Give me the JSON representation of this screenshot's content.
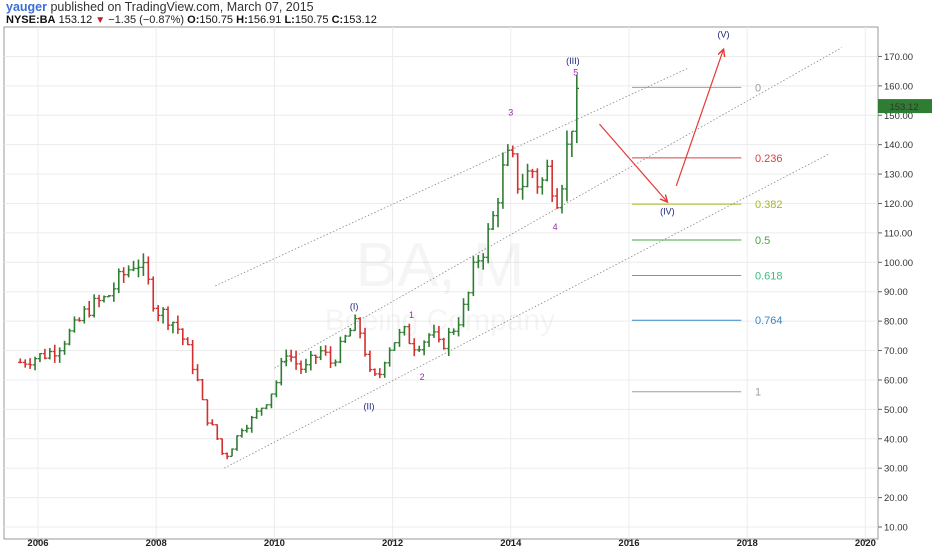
{
  "header": {
    "user": "yauger",
    "published_text": " published on TradingView.com, March 07, 2015",
    "symbol": "NYSE:BA",
    "last": "153.12",
    "change": "−1.35 (−0.87%)",
    "open_label": "O:",
    "open": "150.75",
    "high_label": "H:",
    "high": "156.91",
    "low_label": "L:",
    "low": "150.75",
    "close_label": "C:",
    "close": "153.12"
  },
  "watermark": {
    "ticker": "BA, M",
    "company": "Boeing Company"
  },
  "chart_data": {
    "type": "ohlc",
    "interval": "monthly",
    "ylim": [
      5,
      183
    ],
    "xlim": [
      2005.6,
      2020.25
    ],
    "y_ticks": [
      10,
      20,
      30,
      40,
      50,
      60,
      70,
      80,
      90,
      100,
      110,
      120,
      130,
      140,
      150,
      160,
      170
    ],
    "y_tick_labels": [
      "10.00",
      "20.00",
      "30.00",
      "40.00",
      "50.00",
      "60.00",
      "70.00",
      "80.00",
      "90.00",
      "100.00",
      "110.00",
      "120.00",
      "130.00",
      "140.00",
      "150.00",
      "160.00",
      "170.00"
    ],
    "x_ticks": [
      2006,
      2008,
      2010,
      2012,
      2014,
      2016,
      2018,
      2020
    ],
    "x_tick_labels": [
      "2006",
      "2008",
      "2010",
      "2012",
      "2014",
      "2016",
      "2018",
      "2020"
    ],
    "current_price": 153.12,
    "current_price_label": "153.12",
    "up_color": "#2e7d32",
    "down_color": "#d32f2f",
    "closes": [
      [
        2005.7,
        66
      ],
      [
        2005.85,
        67
      ],
      [
        2006.0,
        68
      ],
      [
        2006.17,
        69
      ],
      [
        2006.33,
        71
      ],
      [
        2006.5,
        75
      ],
      [
        2006.67,
        79
      ],
      [
        2006.83,
        84
      ],
      [
        2007.0,
        86
      ],
      [
        2007.17,
        88
      ],
      [
        2007.33,
        93
      ],
      [
        2007.5,
        97
      ],
      [
        2007.67,
        101
      ],
      [
        2007.83,
        95
      ],
      [
        2008.0,
        84
      ],
      [
        2008.17,
        82
      ],
      [
        2008.33,
        79
      ],
      [
        2008.5,
        72
      ],
      [
        2008.67,
        62
      ],
      [
        2008.83,
        48
      ],
      [
        2009.0,
        42
      ],
      [
        2009.15,
        33
      ],
      [
        2009.3,
        38
      ],
      [
        2009.45,
        44
      ],
      [
        2009.6,
        46
      ],
      [
        2009.75,
        50
      ],
      [
        2009.9,
        54
      ],
      [
        2010.05,
        60
      ],
      [
        2010.2,
        70
      ],
      [
        2010.35,
        66
      ],
      [
        2010.5,
        63
      ],
      [
        2010.65,
        67
      ],
      [
        2010.8,
        70
      ],
      [
        2010.95,
        66
      ],
      [
        2011.1,
        70
      ],
      [
        2011.25,
        76
      ],
      [
        2011.4,
        79
      ],
      [
        2011.5,
        74
      ],
      [
        2011.6,
        62
      ],
      [
        2011.75,
        60
      ],
      [
        2011.9,
        70
      ],
      [
        2012.05,
        74
      ],
      [
        2012.2,
        76
      ],
      [
        2012.35,
        72
      ],
      [
        2012.5,
        73
      ],
      [
        2012.65,
        76
      ],
      [
        2012.8,
        71
      ],
      [
        2012.95,
        75
      ],
      [
        2013.1,
        80
      ],
      [
        2013.25,
        86
      ],
      [
        2013.4,
        100
      ],
      [
        2013.55,
        105
      ],
      [
        2013.7,
        115
      ],
      [
        2013.85,
        130
      ],
      [
        2014.0,
        137
      ],
      [
        2014.08,
        128
      ],
      [
        2014.17,
        126
      ],
      [
        2014.25,
        129
      ],
      [
        2014.35,
        132
      ],
      [
        2014.5,
        125
      ],
      [
        2014.6,
        132
      ],
      [
        2014.7,
        127
      ],
      [
        2014.8,
        122
      ],
      [
        2014.9,
        132
      ],
      [
        2015.0,
        145
      ],
      [
        2015.1,
        154
      ],
      [
        2015.18,
        153.12
      ]
    ],
    "channel": {
      "lower": [
        [
          2009.15,
          30
        ],
        [
          2019.4,
          137
        ]
      ],
      "middle": [
        [
          2010.0,
          64
        ],
        [
          2019.6,
          173
        ]
      ],
      "upper": [
        [
          2009.0,
          92
        ],
        [
          2017.0,
          166
        ]
      ]
    },
    "fibonacci": [
      {
        "level": "0",
        "price": 159.5,
        "color": "#9e9e9e"
      },
      {
        "level": "0.236",
        "price": 135.5,
        "color": "#d84343"
      },
      {
        "level": "0.382",
        "price": 119.8,
        "color": "#a8b820"
      },
      {
        "level": "0.5",
        "price": 107.6,
        "color": "#45a845"
      },
      {
        "level": "0.618",
        "price": 95.5,
        "color": "#3dbb85"
      },
      {
        "level": "0.764",
        "price": 80.3,
        "color": "#3a88c8"
      },
      {
        "level": "1",
        "price": 56.0,
        "color": "#9e9e9e"
      }
    ],
    "fib_x_range": [
      2016.05,
      2017.9
    ],
    "wave_labels": [
      {
        "text": "(I)",
        "x": 2011.35,
        "y": 84,
        "color": "#1a237e"
      },
      {
        "text": "(II)",
        "x": 2011.6,
        "y": 50,
        "color": "#1a237e"
      },
      {
        "text": "1",
        "x": 2012.32,
        "y": 81,
        "color": "#9c27b0"
      },
      {
        "text": "2",
        "x": 2012.5,
        "y": 60,
        "color": "#9c27b0"
      },
      {
        "text": "3",
        "x": 2014.0,
        "y": 150,
        "color": "#9c27b0"
      },
      {
        "text": "4",
        "x": 2014.75,
        "y": 111,
        "color": "#9c27b0"
      },
      {
        "text": "5",
        "x": 2015.1,
        "y": 163.5,
        "color": "#9c27b0"
      },
      {
        "text": "(III)",
        "x": 2015.05,
        "y": 167.5,
        "color": "#1a237e"
      },
      {
        "text": "(IV)",
        "x": 2016.65,
        "y": 116.3,
        "color": "#1a237e"
      },
      {
        "text": "(V)",
        "x": 2017.6,
        "y": 176.5,
        "color": "#1a237e"
      }
    ],
    "arrows": [
      {
        "from": [
          2015.5,
          147
        ],
        "to": [
          2016.65,
          120.5
        ]
      },
      {
        "from": [
          2016.8,
          126
        ],
        "to": [
          2017.6,
          172.5
        ]
      }
    ]
  }
}
